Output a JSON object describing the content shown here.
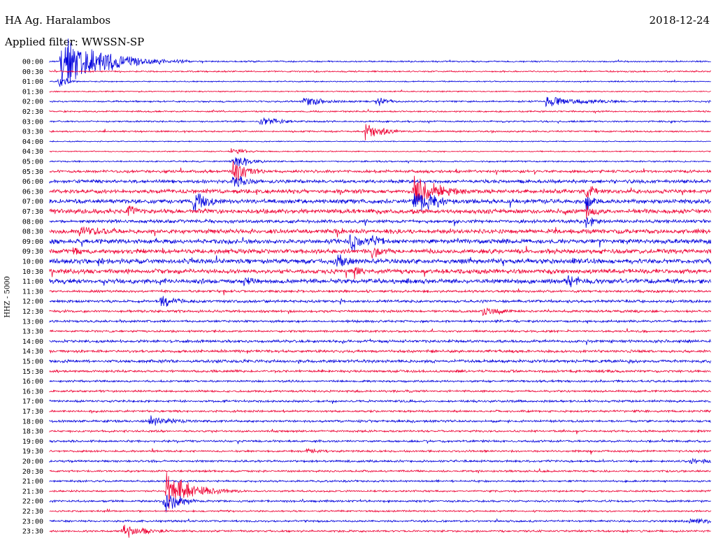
{
  "header": {
    "station": "HA Ag. Haralambos",
    "date": "2018-12-24",
    "filter": "Applied filter: WWSSN-SP"
  },
  "chart_data": {
    "type": "helicorder",
    "title": "HA Ag. Haralambos",
    "date": "2018-12-24",
    "filter": "WWSSN-SP",
    "ylabel": "HHZ - 5000",
    "trace_colors": [
      "#0000dd",
      "#ee0033"
    ],
    "row_minutes": 30,
    "row_labels": [
      "00:00",
      "00:30",
      "01:00",
      "01:30",
      "02:00",
      "02:30",
      "03:00",
      "03:30",
      "04:00",
      "04:30",
      "05:00",
      "05:30",
      "06:00",
      "06:30",
      "07:00",
      "07:30",
      "08:00",
      "08:30",
      "09:00",
      "09:30",
      "10:00",
      "10:30",
      "11:00",
      "11:30",
      "12:00",
      "12:30",
      "13:00",
      "13:30",
      "14:00",
      "14:30",
      "15:00",
      "15:30",
      "16:00",
      "16:30",
      "17:00",
      "17:30",
      "18:00",
      "18:30",
      "19:00",
      "19:30",
      "20:00",
      "20:30",
      "21:00",
      "21:30",
      "22:00",
      "22:30",
      "23:00",
      "23:30"
    ],
    "noise_level": [
      1.0,
      1.0,
      0.8,
      0.8,
      1.1,
      1.0,
      1.1,
      1.1,
      0.7,
      0.8,
      1.0,
      1.8,
      2.2,
      2.6,
      2.8,
      3.0,
      2.2,
      2.8,
      3.0,
      3.0,
      3.2,
      3.0,
      3.0,
      1.6,
      1.8,
      1.6,
      1.5,
      1.4,
      1.8,
      1.8,
      2.0,
      1.6,
      1.4,
      1.4,
      1.5,
      1.4,
      1.5,
      1.4,
      1.4,
      1.3,
      1.4,
      1.3,
      1.3,
      1.2,
      1.4,
      1.2,
      1.3,
      1.3
    ],
    "events": [
      {
        "row": 0,
        "minute": 0.5,
        "amplitude": 40,
        "duration": 2.0
      },
      {
        "row": 2,
        "minute": 0.4,
        "amplitude": 12,
        "duration": 0.4
      },
      {
        "row": 4,
        "minute": 11.5,
        "amplitude": 8,
        "duration": 1.2
      },
      {
        "row": 4,
        "minute": 14.8,
        "amplitude": 10,
        "duration": 0.5
      },
      {
        "row": 4,
        "minute": 22.5,
        "amplitude": 8,
        "duration": 2.2
      },
      {
        "row": 6,
        "minute": 9.5,
        "amplitude": 8,
        "duration": 1.2
      },
      {
        "row": 7,
        "minute": 14.3,
        "amplitude": 15,
        "duration": 0.8
      },
      {
        "row": 9,
        "minute": 8.2,
        "amplitude": 5,
        "duration": 1.2
      },
      {
        "row": 10,
        "minute": 8.3,
        "amplitude": 14,
        "duration": 0.7
      },
      {
        "row": 11,
        "minute": 8.3,
        "amplitude": 20,
        "duration": 0.7
      },
      {
        "row": 12,
        "minute": 8.3,
        "amplitude": 14,
        "duration": 0.7
      },
      {
        "row": 13,
        "minute": 16.5,
        "amplitude": 24,
        "duration": 1.3
      },
      {
        "row": 14,
        "minute": 16.5,
        "amplitude": 20,
        "duration": 1.3
      },
      {
        "row": 14,
        "minute": 6.5,
        "amplitude": 20,
        "duration": 0.8
      },
      {
        "row": 13,
        "minute": 24.3,
        "amplitude": 16,
        "duration": 0.5
      },
      {
        "row": 14,
        "minute": 24.3,
        "amplitude": 18,
        "duration": 0.5
      },
      {
        "row": 15,
        "minute": 24.3,
        "amplitude": 16,
        "duration": 0.5
      },
      {
        "row": 16,
        "minute": 24.3,
        "amplitude": 14,
        "duration": 0.5
      },
      {
        "row": 15,
        "minute": 3.5,
        "amplitude": 10,
        "duration": 0.8
      },
      {
        "row": 17,
        "minute": 1.3,
        "amplitude": 10,
        "duration": 1.3
      },
      {
        "row": 18,
        "minute": 13.6,
        "amplitude": 18,
        "duration": 0.7
      },
      {
        "row": 18,
        "minute": 14.6,
        "amplitude": 10,
        "duration": 1.0
      },
      {
        "row": 19,
        "minute": 1.0,
        "amplitude": 8,
        "duration": 0.5
      },
      {
        "row": 19,
        "minute": 14.6,
        "amplitude": 12,
        "duration": 0.8
      },
      {
        "row": 20,
        "minute": 2.2,
        "amplitude": 10,
        "duration": 0.5
      },
      {
        "row": 20,
        "minute": 13.0,
        "amplitude": 12,
        "duration": 0.8
      },
      {
        "row": 20,
        "minute": 23.5,
        "amplitude": 8,
        "duration": 0.8
      },
      {
        "row": 21,
        "minute": 13.8,
        "amplitude": 12,
        "duration": 0.5
      },
      {
        "row": 22,
        "minute": 8.8,
        "amplitude": 8,
        "duration": 0.8
      },
      {
        "row": 22,
        "minute": 23.4,
        "amplitude": 14,
        "duration": 0.8
      },
      {
        "row": 24,
        "minute": 5.0,
        "amplitude": 10,
        "duration": 1.0
      },
      {
        "row": 25,
        "minute": 19.6,
        "amplitude": 9,
        "duration": 1.0
      },
      {
        "row": 36,
        "minute": 4.5,
        "amplitude": 9,
        "duration": 1.5
      },
      {
        "row": 43,
        "minute": 5.3,
        "amplitude": 30,
        "duration": 1.2
      },
      {
        "row": 44,
        "minute": 5.2,
        "amplitude": 20,
        "duration": 0.8
      },
      {
        "row": 47,
        "minute": 3.3,
        "amplitude": 14,
        "duration": 1.0
      },
      {
        "row": 46,
        "minute": 29.0,
        "amplitude": 7,
        "duration": 1.0
      },
      {
        "row": 40,
        "minute": 29.0,
        "amplitude": 6,
        "duration": 1.0
      },
      {
        "row": 39,
        "minute": 11.6,
        "amplitude": 7,
        "duration": 0.8
      }
    ]
  }
}
